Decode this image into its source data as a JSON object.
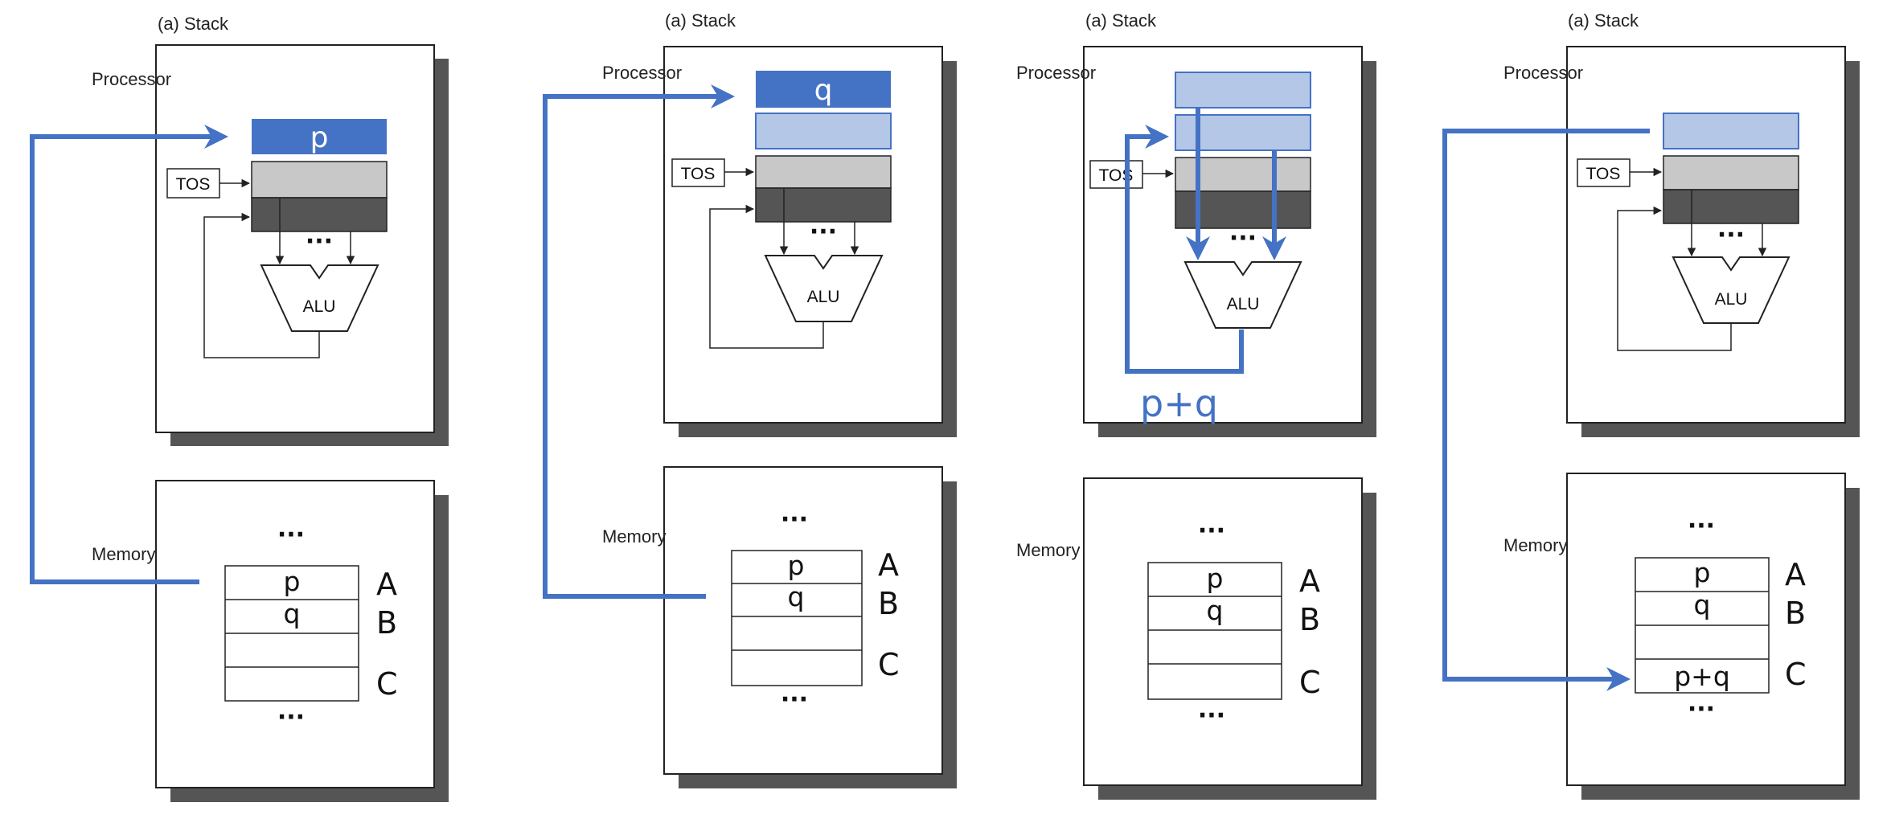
{
  "panels": [
    {
      "caption": "(a)  Stack",
      "processor_label": "Processor",
      "memory_label": "Memory",
      "tos_label": "TOS",
      "alu_label": "ALU",
      "top_register_value": "p",
      "memory": {
        "cells": [
          "p",
          "q",
          "",
          ""
        ],
        "addresses": [
          "A",
          "B",
          "C"
        ],
        "ellipsis": "..."
      },
      "step": "push p from memory A onto stack"
    },
    {
      "caption": "(a)  Stack",
      "processor_label": "Processor",
      "memory_label": "Memory",
      "tos_label": "TOS",
      "alu_label": "ALU",
      "top_register_value": "q",
      "memory": {
        "cells": [
          "p",
          "q",
          "",
          ""
        ],
        "addresses": [
          "A",
          "B",
          "C"
        ],
        "ellipsis": "..."
      },
      "step": "push q from memory B onto stack"
    },
    {
      "caption": "(a)  Stack",
      "processor_label": "Processor",
      "memory_label": "Memory",
      "tos_label": "TOS",
      "alu_label": "ALU",
      "alu_result": "p+q",
      "memory": {
        "cells": [
          "p",
          "q",
          "",
          ""
        ],
        "addresses": [
          "A",
          "B",
          "C"
        ],
        "ellipsis": "..."
      },
      "step": "add top two stack entries"
    },
    {
      "caption": "(a)  Stack",
      "processor_label": "Processor",
      "memory_label": "Memory",
      "tos_label": "TOS",
      "alu_label": "ALU",
      "memory": {
        "cells": [
          "p",
          "q",
          "",
          "p+q"
        ],
        "addresses": [
          "A",
          "B",
          "C"
        ],
        "ellipsis": "..."
      },
      "step": "pop p+q into memory C"
    }
  ],
  "colors": {
    "accent_blue": "#4472c4",
    "register_dark_blue": "#4472c4",
    "register_light_blue": "#b4c7e7",
    "tos_gray": "#c8c8c8",
    "stack_dark": "#555555",
    "shadow": "#555555",
    "box_border": "#222222"
  }
}
